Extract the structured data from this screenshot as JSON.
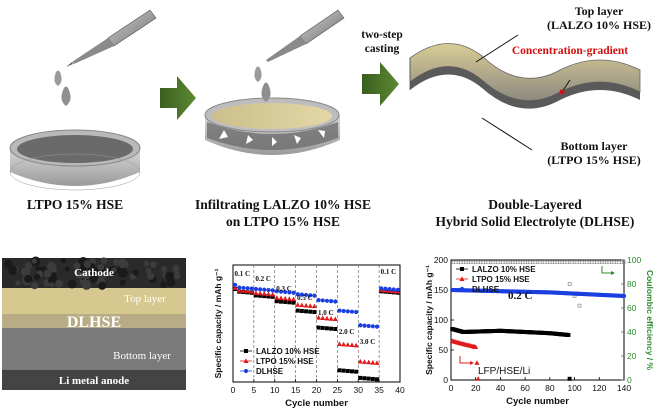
{
  "top": {
    "step_label": [
      "two-step",
      "casting"
    ],
    "top_layer": [
      "Top layer",
      "(LALZO 10% HSE)"
    ],
    "gradient_label": "Concentration-gradient",
    "bottom_layer": [
      "Bottom layer",
      "(LTPO 15% HSE)"
    ]
  },
  "captions": {
    "c1": "LTPO 15% HSE",
    "c2": [
      "Infiltrating LALZO 10% HSE",
      "on LTPO 15% HSE"
    ],
    "c3": [
      "Double-Layered",
      "Hybrid Solid Electrolyte (DLHSE)"
    ]
  },
  "stack": {
    "cathode": "Cathode",
    "top_layer": "Top layer",
    "dlhse": "DLHSE",
    "bottom_layer": "Bottom layer",
    "anode": "Li metal anode"
  },
  "colors": {
    "arrow": "#4e7a2a",
    "lalzo": "#000000",
    "ltpo": "#e01b1b",
    "dlhse": "#1b3fe0",
    "ce": "#2a8a2a",
    "gradient_text": "#d01010"
  },
  "chart_data": [
    {
      "type": "scatter",
      "title": "",
      "xlabel": "Cycle number",
      "ylabel": "Specific capacity / mAh g⁻¹",
      "xlim": [
        0,
        40
      ],
      "ylim": [
        0,
        200
      ],
      "x_ticks": [
        "0",
        "5",
        "10",
        "15",
        "20",
        "25",
        "30",
        "35",
        "40"
      ],
      "rate_labels": [
        {
          "label": "0.1 C",
          "x": 0
        },
        {
          "label": "0.2 C",
          "x": 5
        },
        {
          "label": "0.3 C",
          "x": 10
        },
        {
          "label": "0.5 C",
          "x": 15
        },
        {
          "label": "1.0 C",
          "x": 20
        },
        {
          "label": "2.0 C",
          "x": 25
        },
        {
          "label": "3.0 C",
          "x": 30
        },
        {
          "label": "0.1 C",
          "x": 35
        }
      ],
      "series": [
        {
          "name": "LALZO 10% HSE",
          "stage_values": [
            155,
            148,
            138,
            122,
            93,
            20,
            7,
            155
          ]
        },
        {
          "name": "LTPO 15% HSE",
          "stage_values": [
            157,
            152,
            144,
            132,
            110,
            65,
            35,
            157
          ]
        },
        {
          "name": "DLHSE",
          "stage_values": [
            162,
            159,
            155,
            150,
            140,
            122,
            97,
            160
          ]
        }
      ]
    },
    {
      "type": "scatter",
      "title": "",
      "annotation": "0.2 C",
      "cell_label": "LFP/HSE/Li",
      "xlabel": "Cycle number",
      "ylabel": "Specific capacity / mAh g⁻¹",
      "y2label": "Coulombic efficiency / %",
      "xlim": [
        0,
        140
      ],
      "ylim": [
        0,
        200
      ],
      "y2lim": [
        0,
        100
      ],
      "x_ticks": [
        "0",
        "20",
        "40",
        "60",
        "80",
        "100",
        "120",
        "140"
      ],
      "y_ticks": [
        "0",
        "50",
        "100",
        "150",
        "200"
      ],
      "y2_ticks": [
        "0",
        "20",
        "40",
        "60",
        "80",
        "100"
      ],
      "series": [
        {
          "name": "LALZO 10% HSE",
          "description_points": [
            [
              1,
              85
            ],
            [
              10,
              80
            ],
            [
              40,
              82
            ],
            [
              80,
              78
            ],
            [
              95,
              75
            ],
            [
              96,
              2
            ]
          ]
        },
        {
          "name": "LTPO 15% HSE",
          "description_points": [
            [
              1,
              65
            ],
            [
              10,
              60
            ],
            [
              20,
              55
            ],
            [
              22,
              2
            ]
          ]
        },
        {
          "name": "DLHSE",
          "description_points": [
            [
              1,
              150
            ],
            [
              40,
              148
            ],
            [
              80,
              146
            ],
            [
              140,
              140
            ]
          ]
        }
      ]
    }
  ]
}
